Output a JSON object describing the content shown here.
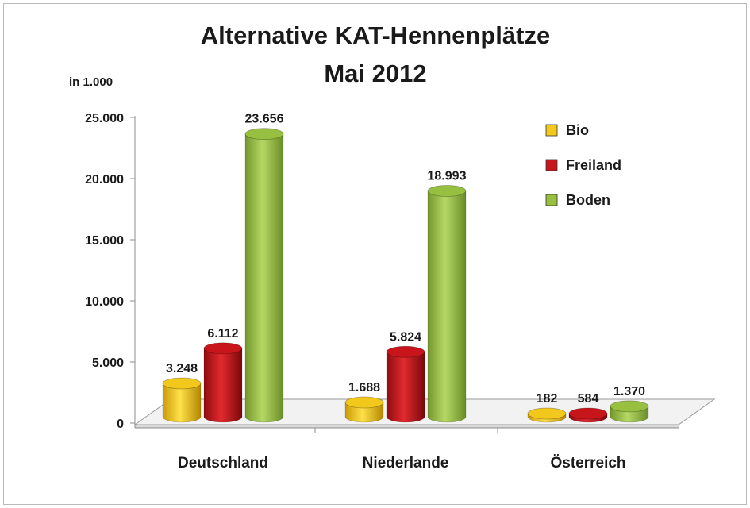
{
  "chart_data": {
    "type": "bar",
    "title": "Alternative KAT-Hennenplätze",
    "subtitle": "Mai 2012",
    "ylabel": "in 1.000",
    "xlabel": "",
    "categories": [
      "Deutschland",
      "Niederlande",
      "Österreich"
    ],
    "series": [
      {
        "name": "Bio",
        "values": [
          3248,
          1688,
          182
        ],
        "labels": [
          "3.248",
          "1.688",
          "182"
        ],
        "color": "#f2c81c"
      },
      {
        "name": "Freiland",
        "values": [
          6112,
          5824,
          584
        ],
        "labels": [
          "6.112",
          "5.824",
          "584"
        ],
        "color": "#c8151b"
      },
      {
        "name": "Boden",
        "values": [
          23656,
          18993,
          1370
        ],
        "labels": [
          "23.656",
          "18.993",
          "1.370"
        ],
        "color": "#97bf40"
      }
    ],
    "yticks": [
      0,
      5000,
      10000,
      15000,
      20000,
      25000
    ],
    "ytick_labels": [
      "0",
      "5.000",
      "10.000",
      "15.000",
      "20.000",
      "25.000"
    ],
    "ylim": [
      0,
      25000
    ],
    "legend_position": "top-right",
    "grid": false
  }
}
